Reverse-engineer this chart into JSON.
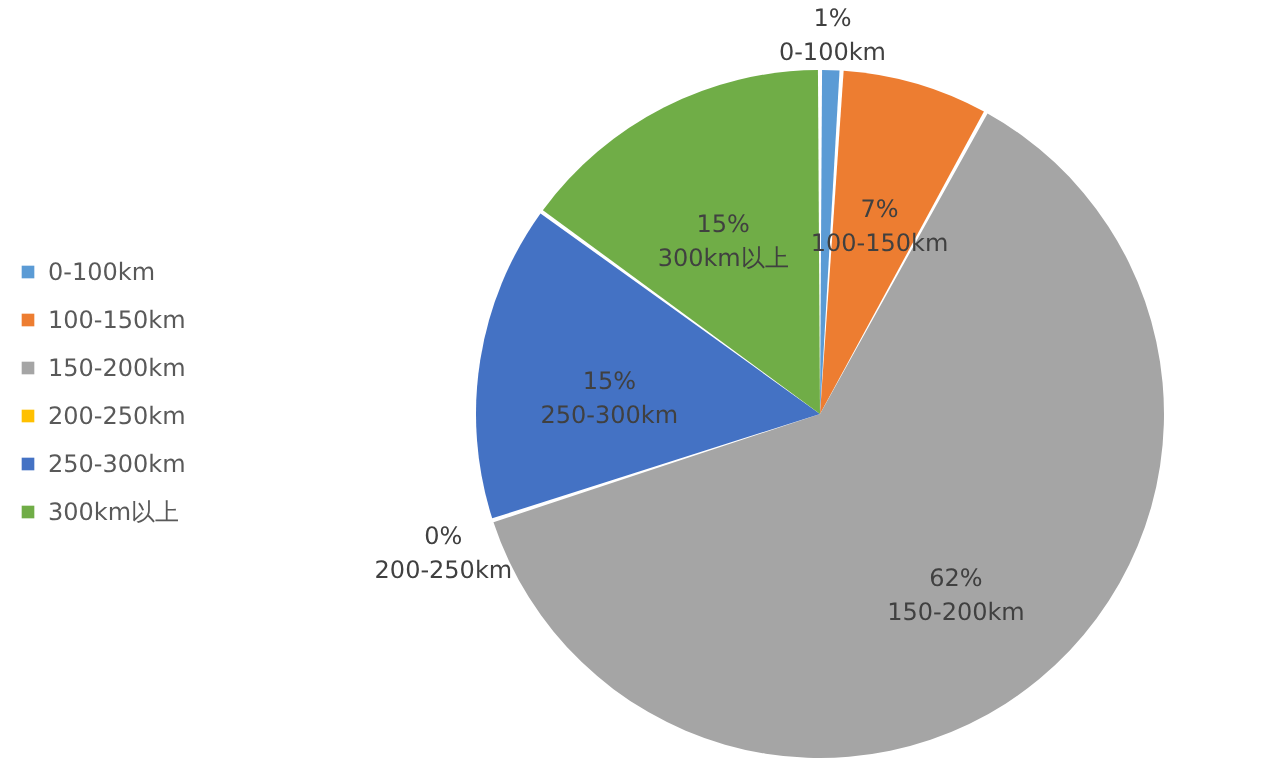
{
  "chart_data": {
    "type": "pie",
    "categories": [
      "0-100km",
      "100-150km",
      "150-200km",
      "200-250km",
      "250-300km",
      "300km以上"
    ],
    "values": [
      1,
      7,
      62,
      0,
      15,
      15
    ],
    "colors": [
      "#5b9bd5",
      "#ed7d31",
      "#a5a5a5",
      "#ffc000",
      "#4472c4",
      "#70ad47"
    ],
    "value_labels": [
      "1%",
      "7%",
      "62%",
      "0%",
      "15%",
      "15%"
    ],
    "legend": "left"
  }
}
